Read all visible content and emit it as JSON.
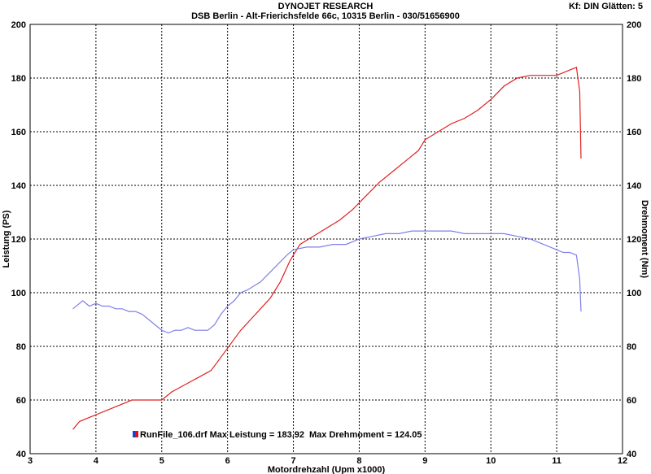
{
  "header": {
    "title": "DYNOJET RESEARCH",
    "subtitle": "DSB Berlin - Alt-Frierichsfelde 66c, 10315 Berlin - 030/51656900",
    "settings": "Kf: DIN  Glätten: 5"
  },
  "legend": {
    "run_label": "RunFile_106.drf Max Leistung = 183.92",
    "torque_label": "Max Drehmoment = 124.05",
    "marker_colors": [
      "#2040d0",
      "#e01010"
    ]
  },
  "chart_data": {
    "type": "line",
    "xlabel": "Motordrehzahl (Upm x1000)",
    "ylabel_left": "Leistung (PS)",
    "ylabel_right": "Drehmoment (Nm)",
    "xlim": [
      3,
      12
    ],
    "ylim": [
      40,
      200
    ],
    "xticks": [
      "3",
      "4",
      "5",
      "6",
      "7",
      "8",
      "9",
      "10",
      "11",
      "12"
    ],
    "yticks": [
      "40",
      "60",
      "80",
      "100",
      "120",
      "140",
      "160",
      "180",
      "200"
    ],
    "grid": true,
    "series": [
      {
        "name": "Leistung",
        "color": "#e02020",
        "x": [
          3.65,
          3.75,
          3.85,
          3.95,
          4.05,
          4.15,
          4.25,
          4.35,
          4.45,
          4.55,
          4.7,
          4.85,
          5.0,
          5.15,
          5.3,
          5.45,
          5.6,
          5.75,
          5.9,
          6.05,
          6.2,
          6.35,
          6.5,
          6.65,
          6.8,
          6.95,
          7.1,
          7.3,
          7.5,
          7.7,
          7.9,
          8.1,
          8.3,
          8.5,
          8.7,
          8.9,
          9.0,
          9.2,
          9.4,
          9.6,
          9.8,
          10.0,
          10.2,
          10.4,
          10.6,
          10.8,
          11.0,
          11.1,
          11.2,
          11.3,
          11.35,
          11.37
        ],
        "y": [
          49,
          52,
          53,
          54,
          55,
          56,
          57,
          58,
          59,
          60,
          60,
          60,
          60,
          63,
          65,
          67,
          69,
          71,
          76,
          81,
          86,
          90,
          94,
          98,
          104,
          112,
          118,
          121,
          124,
          127,
          131,
          136,
          141,
          145,
          149,
          153,
          157,
          160,
          163,
          165,
          168,
          172,
          177,
          180,
          181,
          181,
          181,
          182,
          183,
          184,
          175,
          150
        ]
      },
      {
        "name": "Drehmoment",
        "color": "#7f7fe8",
        "x": [
          3.65,
          3.8,
          3.9,
          4.0,
          4.1,
          4.2,
          4.3,
          4.4,
          4.5,
          4.6,
          4.7,
          4.8,
          4.9,
          5.0,
          5.1,
          5.2,
          5.3,
          5.4,
          5.5,
          5.6,
          5.7,
          5.8,
          5.9,
          6.0,
          6.1,
          6.2,
          6.3,
          6.5,
          6.7,
          6.9,
          7.0,
          7.2,
          7.4,
          7.6,
          7.8,
          8.0,
          8.2,
          8.4,
          8.6,
          8.8,
          9.0,
          9.2,
          9.4,
          9.6,
          9.8,
          10.0,
          10.2,
          10.4,
          10.6,
          10.8,
          11.0,
          11.1,
          11.2,
          11.3,
          11.35,
          11.37
        ],
        "y": [
          94,
          97,
          95,
          96,
          95,
          95,
          94,
          94,
          93,
          93,
          92,
          90,
          88,
          86,
          85,
          86,
          86,
          87,
          86,
          86,
          86,
          88,
          92,
          95,
          97,
          100,
          101,
          104,
          109,
          114,
          116,
          117,
          117,
          118,
          118,
          120,
          121,
          122,
          122,
          123,
          123,
          123,
          123,
          122,
          122,
          122,
          122,
          121,
          120,
          118,
          116,
          115,
          115,
          114,
          105,
          93
        ]
      }
    ]
  }
}
